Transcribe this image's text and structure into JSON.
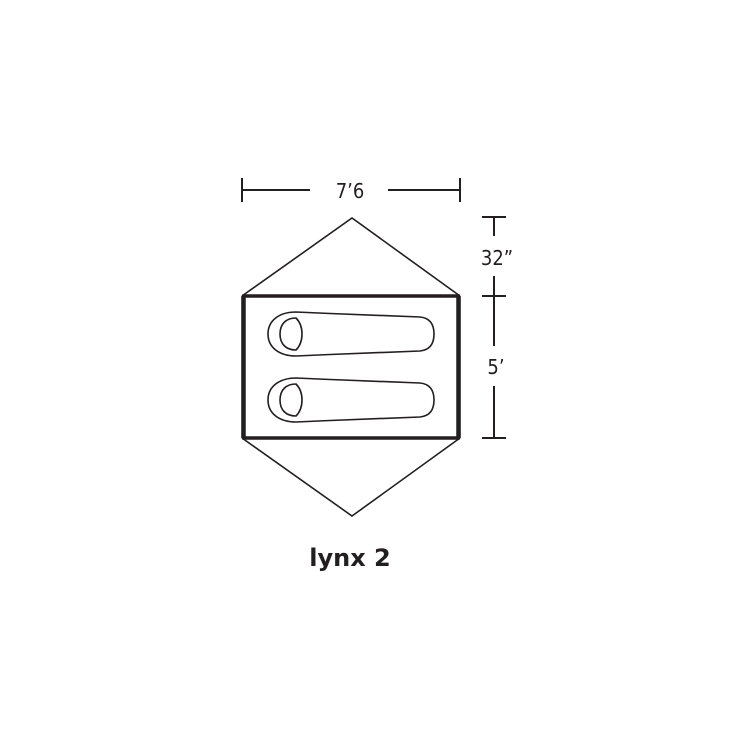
{
  "diagram": {
    "width_label": "7’6",
    "vestibule_label": "32”",
    "floor_label": "5’",
    "title": "lynx 2",
    "line_color": "#231f20",
    "fill_color": "#ffffff",
    "sleeping_bags": 2
  }
}
